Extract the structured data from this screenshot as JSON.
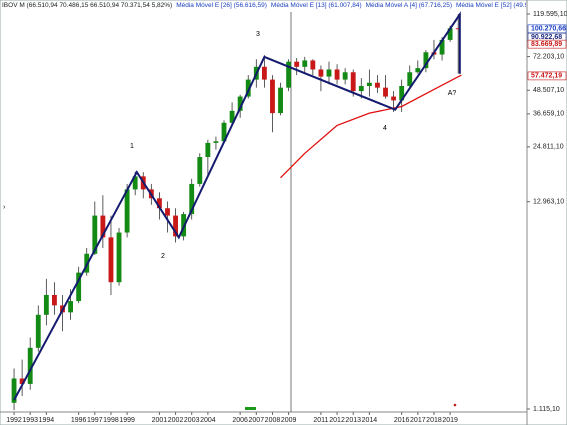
{
  "chart_data": {
    "type": "candlestick",
    "header": [
      {
        "text": "IBOV M (66.510,94  70.486,15  66.510,94  70.371,54  5,82%)",
        "color": "#1a1a1a"
      },
      {
        "text": "Média Móvel E [26] (56.616,59)",
        "color": "#1a3fbf"
      },
      {
        "text": "Média Móvel E [13] (61.007,84)",
        "color": "#1a3fbf"
      },
      {
        "text": "Média Móvel A [4] (67.716,25)",
        "color": "#1a3fbf"
      },
      {
        "text": "Média Móvel E [52] (49.974,97)",
        "color": "#1a3fbf"
      },
      {
        "text": "Média M...",
        "color": "#1a3fbf"
      }
    ],
    "x": [
      1992.0,
      1992.5,
      1993.0,
      1993.5,
      1994.0,
      1994.5,
      1995.0,
      1995.5,
      1996.0,
      1996.5,
      1997.0,
      1997.5,
      1998.0,
      1998.5,
      1999.0,
      1999.5,
      2000.0,
      2000.5,
      2001.0,
      2001.5,
      2002.0,
      2002.5,
      2003.0,
      2003.5,
      2004.0,
      2004.5,
      2005.0,
      2005.5,
      2006.0,
      2006.5,
      2007.0,
      2007.5,
      2008.0,
      2008.5,
      2009.0,
      2009.5,
      2010.0,
      2010.5,
      2011.0,
      2011.5,
      2012.0,
      2012.5,
      2013.0,
      2013.5,
      2014.0,
      2014.5,
      2015.0,
      2015.5,
      2016.0,
      2016.5,
      2017.0,
      2017.5,
      2018.0,
      2018.5,
      2019.0,
      2019.5
    ],
    "open": [
      1200,
      1600,
      1500,
      2300,
      3400,
      4300,
      3800,
      3500,
      4000,
      5600,
      7000,
      11000,
      8500,
      5000,
      9000,
      15000,
      17500,
      15000,
      13500,
      12000,
      11000,
      8600,
      11200,
      16000,
      22000,
      26000,
      26500,
      33000,
      38000,
      45000,
      55000,
      64000,
      55000,
      37000,
      50000,
      68000,
      64000,
      69000,
      62000,
      57000,
      62000,
      55000,
      60000,
      48000,
      51000,
      53000,
      50000,
      45000,
      43000,
      51000,
      60000,
      63000,
      76000,
      74000,
      88000,
      101000
    ],
    "high": [
      1800,
      2000,
      2600,
      3800,
      5200,
      5000,
      4300,
      4600,
      6000,
      7500,
      13000,
      14000,
      11000,
      9500,
      16000,
      18500,
      18400,
      16000,
      14500,
      13000,
      12000,
      11500,
      17000,
      23000,
      27000,
      28000,
      34000,
      42000,
      46000,
      58000,
      70000,
      73500,
      58000,
      53000,
      70000,
      71000,
      72000,
      70000,
      65000,
      68000,
      66000,
      63000,
      62000,
      56000,
      62000,
      58000,
      58000,
      48000,
      55000,
      65000,
      69000,
      78000,
      88000,
      91000,
      104000,
      119500
    ],
    "low": [
      1100,
      1300,
      1400,
      2200,
      3000,
      3400,
      2800,
      3200,
      3900,
      5400,
      6900,
      7500,
      4300,
      4800,
      8500,
      14000,
      13500,
      12500,
      10500,
      9000,
      8000,
      8200,
      10500,
      15500,
      17600,
      24000,
      26000,
      32000,
      35000,
      44000,
      50000,
      50000,
      29500,
      36000,
      48000,
      58000,
      60000,
      58000,
      48000,
      52000,
      52000,
      52000,
      45000,
      44000,
      45000,
      47000,
      44000,
      37500,
      37500,
      50000,
      59000,
      60000,
      70000,
      69000,
      86000,
      59000
    ],
    "close": [
      1600,
      1500,
      2300,
      3400,
      4300,
      3800,
      3500,
      4000,
      5600,
      7000,
      11000,
      8500,
      5000,
      9000,
      15000,
      17500,
      15000,
      13500,
      12000,
      11000,
      8600,
      11200,
      16000,
      22000,
      26000,
      26500,
      33000,
      38000,
      45000,
      55000,
      64000,
      55000,
      37000,
      50000,
      68000,
      64000,
      69000,
      62000,
      57000,
      62000,
      55000,
      60000,
      48000,
      51000,
      53000,
      50000,
      45000,
      43000,
      51000,
      60000,
      63000,
      76000,
      74000,
      88000,
      101000,
      100000
    ],
    "colors": {
      "up": "#138a13",
      "down": "#c81818",
      "wick": "#333333"
    },
    "log": true,
    "xlim": [
      1991.13,
      2023.76
    ],
    "ylim": [
      1076,
      133000
    ],
    "xticks": [
      1992,
      1993,
      1994,
      1996,
      1997,
      1998,
      1999,
      2001,
      2002,
      2003,
      2004,
      2006,
      2007,
      2008,
      2009,
      2011,
      2012,
      2013,
      2014,
      2016,
      2017,
      2018,
      2019
    ],
    "yticks": [
      {
        "value": 1115.1,
        "label": "1.115,10"
      },
      {
        "value": 12963.1,
        "label": "12.963,10"
      },
      {
        "value": 24811.1,
        "label": "24.811,10"
      },
      {
        "value": 36659.1,
        "label": "36.659,10"
      },
      {
        "value": 48507.1,
        "label": "48.507,10"
      },
      {
        "value": 72203.1,
        "label": "72.203,10"
      },
      {
        "value": 119595.1,
        "label": "119.595,10"
      }
    ],
    "price_labels": [
      {
        "value": 100270.66,
        "label": "100.270,66",
        "color": "#1a3fbf"
      },
      {
        "value": 90922.68,
        "label": "90.922,68",
        "color": "#1a2a80"
      },
      {
        "value": 83669.89,
        "label": "83.669,89",
        "color": "#c81818"
      },
      {
        "value": 57472.19,
        "label": "57.472,19",
        "color": "#c81818"
      }
    ],
    "moving_average": {
      "color": "#e01010",
      "x": [
        2008.5,
        2010,
        2012,
        2014,
        2016,
        2018,
        2019.7
      ],
      "values": [
        17200,
        23000,
        32000,
        37000,
        40000,
        49000,
        58000
      ]
    },
    "wave": {
      "color": "#141a6e",
      "x": [
        1992.0,
        1999.6,
        2002.2,
        2007.5,
        2015.6,
        2019.6,
        2019.6
      ],
      "values": [
        1240,
        18400,
        8500,
        72000,
        38500,
        119000,
        59000
      ]
    },
    "wave_labels": [
      "1",
      "2",
      "3",
      "4",
      "A?"
    ]
  }
}
